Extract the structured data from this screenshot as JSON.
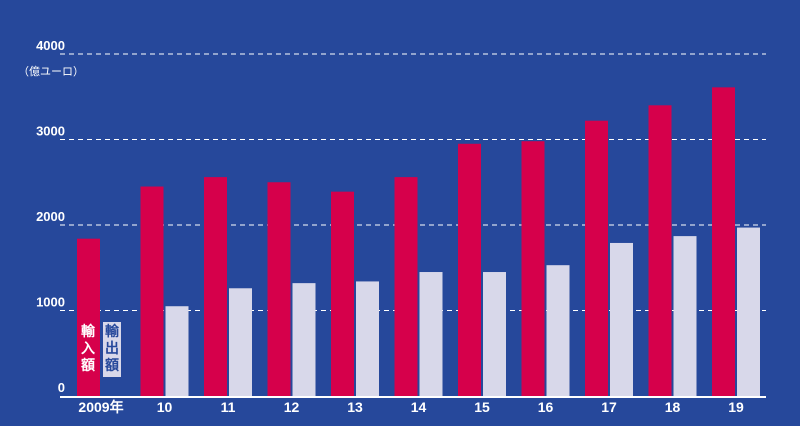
{
  "chart_data": {
    "type": "bar",
    "unit": "（億ユーロ）",
    "categories": [
      "2009年",
      "10",
      "11",
      "12",
      "13",
      "14",
      "15",
      "16",
      "17",
      "18",
      "19"
    ],
    "series": [
      {
        "name": "輸入額",
        "color": "#d6004b",
        "values": [
          1840,
          2450,
          2560,
          2500,
          2390,
          2560,
          2950,
          2980,
          3220,
          3400,
          3610
        ]
      },
      {
        "name": "輸出額",
        "color": "#d8d8ea",
        "values": [
          null,
          1050,
          1260,
          1320,
          1340,
          1450,
          1450,
          1530,
          1790,
          1870,
          1970
        ]
      }
    ],
    "ylim": [
      0,
      4000
    ],
    "yticks": [
      0,
      1000,
      2000,
      3000,
      4000
    ],
    "grid": true,
    "legend_placement": "bottom-left, in the first category slot"
  }
}
